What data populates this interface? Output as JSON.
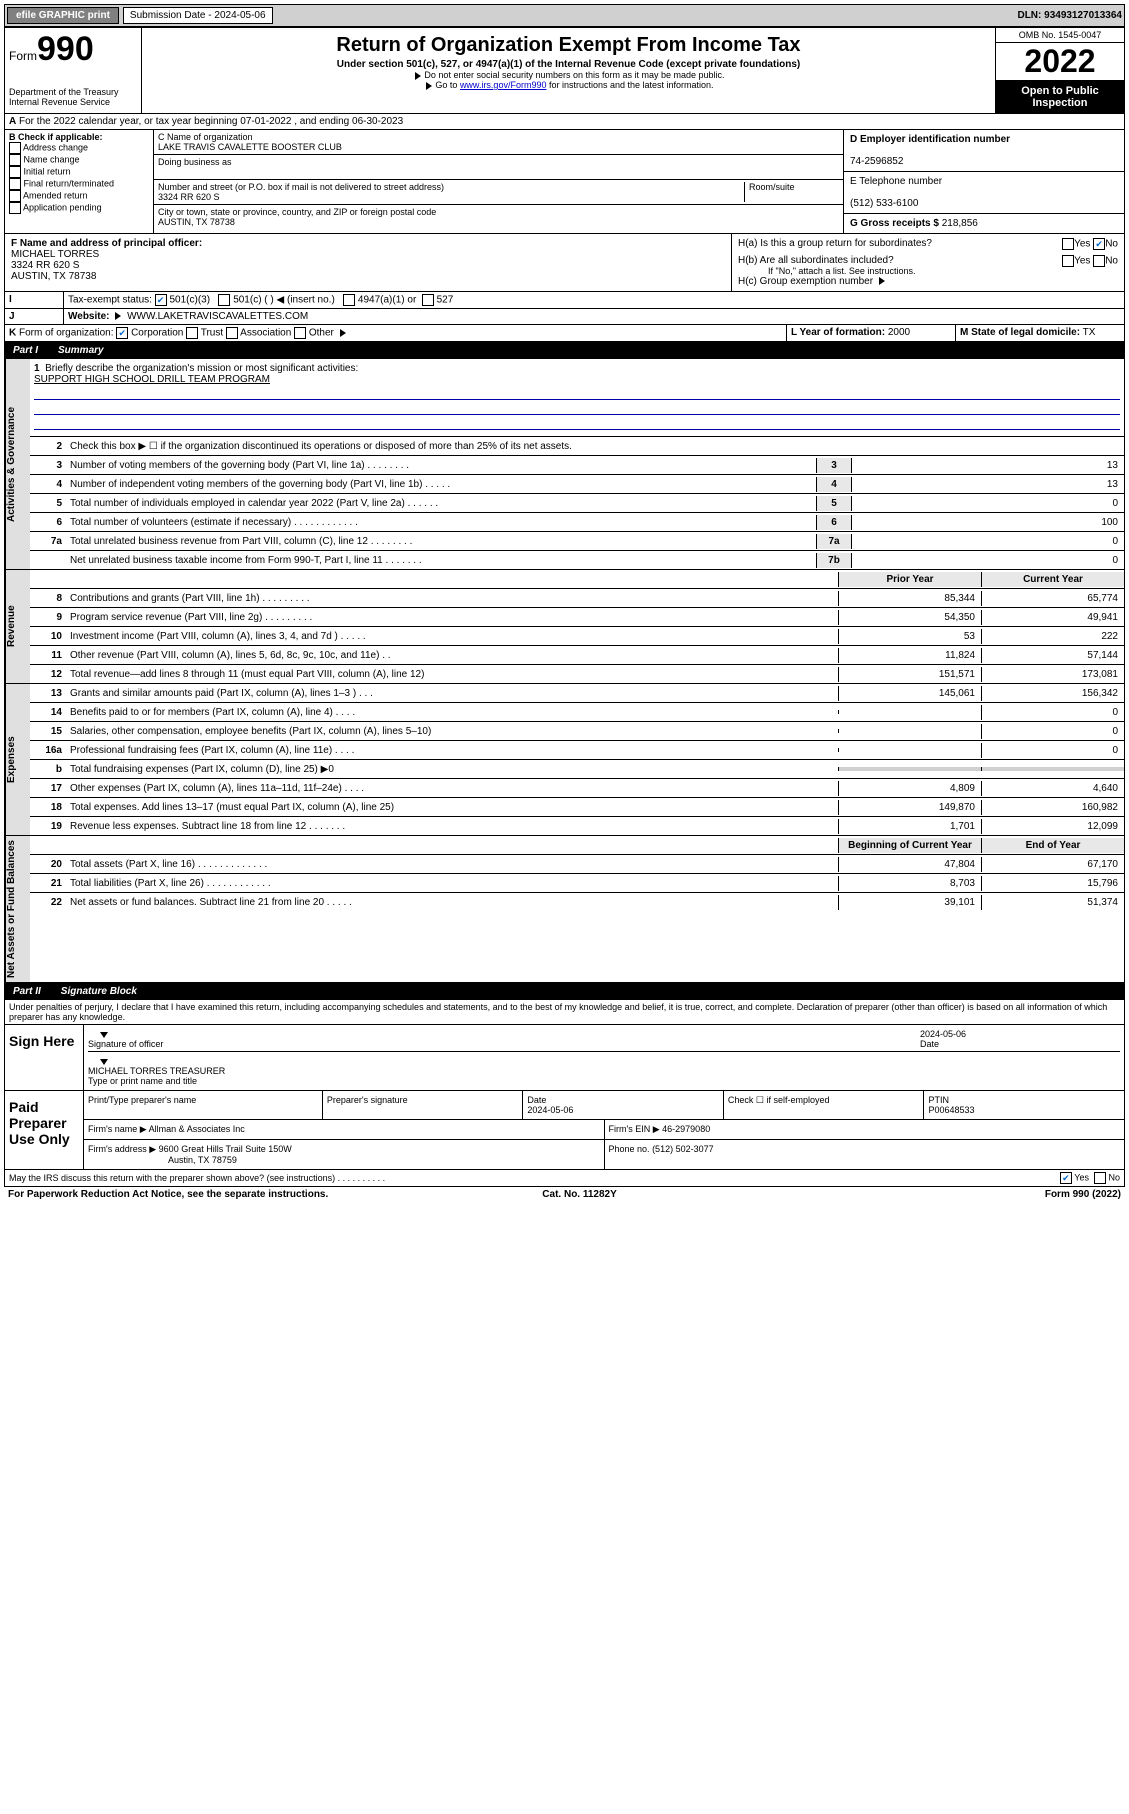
{
  "colors": {
    "header_bg": "#d0d0d0",
    "btn_bg": "#808080",
    "link": "#0000cc",
    "black": "#000000",
    "white": "#ffffff",
    "vtab_bg": "#e0e0e0",
    "box_bg": "#e8e8e8",
    "check": "#0066cc",
    "mission_line": "#0000aa"
  },
  "topbar": {
    "efile": "efile GRAPHIC print",
    "sub_label": "Submission Date - 2024-05-06",
    "dln": "DLN: 93493127013364"
  },
  "header": {
    "form_label": "Form",
    "form_num": "990",
    "title": "Return of Organization Exempt From Income Tax",
    "subtitle": "Under section 501(c), 527, or 4947(a)(1) of the Internal Revenue Code (except private foundations)",
    "note1": "Do not enter social security numbers on this form as it may be made public.",
    "note2_pre": "Go to ",
    "note2_link": "www.irs.gov/Form990",
    "note2_post": " for instructions and the latest information.",
    "dept": "Department of the Treasury",
    "irs": "Internal Revenue Service",
    "omb": "OMB No. 1545-0047",
    "year": "2022",
    "open1": "Open to Public",
    "open2": "Inspection"
  },
  "sectionA": {
    "text": "For the 2022 calendar year, or tax year beginning 07-01-2022    , and ending 06-30-2023",
    "prefix": "A"
  },
  "colB": {
    "label": "B Check if applicable:",
    "opts": [
      "Address change",
      "Name change",
      "Initial return",
      "Final return/terminated",
      "Amended return",
      "Application pending"
    ]
  },
  "colC": {
    "name_label": "C Name of organization",
    "name": "LAKE TRAVIS CAVALETTE BOOSTER CLUB",
    "dba_label": "Doing business as",
    "dba": "",
    "addr_label": "Number and street (or P.O. box if mail is not delivered to street address)",
    "room_label": "Room/suite",
    "addr": "3324 RR 620 S",
    "city_label": "City or town, state or province, country, and ZIP or foreign postal code",
    "city": "AUSTIN, TX  78738"
  },
  "colRight": {
    "ein_label": "D Employer identification number",
    "ein": "74-2596852",
    "tel_label": "E Telephone number",
    "tel": "(512) 533-6100",
    "gross_label": "G Gross receipts $",
    "gross": "218,856"
  },
  "rowF": {
    "f_label": "F  Name and address of principal officer:",
    "f_name": "MICHAEL TORRES",
    "f_addr1": "3324 RR 620 S",
    "f_addr2": "AUSTIN, TX  78738",
    "h_a": "H(a)  Is this a group return for subordinates?",
    "h_b": "H(b)  Are all subordinates included?",
    "h_b_note": "If \"No,\" attach a list. See instructions.",
    "h_c": "H(c)  Group exemption number",
    "yes": "Yes",
    "no": "No"
  },
  "rowI": {
    "label": "Tax-exempt status:",
    "i": "I",
    "o1": "501(c)(3)",
    "o2": "501(c) (  )",
    "o2_note": "(insert no.)",
    "o3": "4947(a)(1) or",
    "o4": "527"
  },
  "rowJ": {
    "j": "J",
    "label": "Website:",
    "val": "WWW.LAKETRAVISCAVALETTES.COM"
  },
  "rowK": {
    "k": "K",
    "label": "Form of organization:",
    "o1": "Corporation",
    "o2": "Trust",
    "o3": "Association",
    "o4": "Other",
    "l_label": "L Year of formation:",
    "l_val": "2000",
    "m_label": "M State of legal domicile:",
    "m_val": "TX"
  },
  "part1": {
    "label": "Part I",
    "title": "Summary"
  },
  "mission": {
    "num": "1",
    "label": "Briefly describe the organization's mission or most significant activities:",
    "text": "SUPPORT HIGH SCHOOL DRILL TEAM PROGRAM"
  },
  "gov_lines": [
    {
      "num": "2",
      "desc": "Check this box ▶ ☐  if the organization discontinued its operations or disposed of more than 25% of its net assets.",
      "box": "",
      "val": ""
    },
    {
      "num": "3",
      "desc": "Number of voting members of the governing body (Part VI, line 1a)   .    .    .    .    .    .    .    .",
      "box": "3",
      "val": "13"
    },
    {
      "num": "4",
      "desc": "Number of independent voting members of the governing body (Part VI, line 1b)  .    .    .    .    .",
      "box": "4",
      "val": "13"
    },
    {
      "num": "5",
      "desc": "Total number of individuals employed in calendar year 2022 (Part V, line 2a)   .    .    .    .    .    .",
      "box": "5",
      "val": "0"
    },
    {
      "num": "6",
      "desc": "Total number of volunteers (estimate if necessary)   .    .    .    .    .    .    .    .    .    .    .    .",
      "box": "6",
      "val": "100"
    },
    {
      "num": "7a",
      "desc": "Total unrelated business revenue from Part VIII, column (C), line 12  .    .    .    .    .    .    .    .",
      "box": "7a",
      "val": "0"
    },
    {
      "num": "",
      "desc": "Net unrelated business taxable income from Form 990-T, Part I, line 11   .    .    .    .    .    .    .",
      "box": "7b",
      "val": "0"
    }
  ],
  "rev_head": {
    "prior": "Prت Year",
    "current": "Current Year"
  },
  "rev_head_labels": {
    "prior": "Prior Year",
    "current": "Current Year"
  },
  "rev_lines": [
    {
      "num": "8",
      "desc": "Contributions and grants (Part VIII, line 1h)   .    .    .    .    .    .    .    .    .",
      "p": "85,344",
      "c": "65,774"
    },
    {
      "num": "9",
      "desc": "Program service revenue (Part VIII, line 2g)   .    .    .    .    .    .    .    .    .",
      "p": "54,350",
      "c": "49,941"
    },
    {
      "num": "10",
      "desc": "Investment income (Part VIII, column (A), lines 3, 4, and 7d )   .    .    .    .    .",
      "p": "53",
      "c": "222"
    },
    {
      "num": "11",
      "desc": "Other revenue (Part VIII, column (A), lines 5, 6d, 8c, 9c, 10c, and 11e)   .    .",
      "p": "11,824",
      "c": "57,144"
    },
    {
      "num": "12",
      "desc": "Total revenue—add lines 8 through 11 (must equal Part VIII, column (A), line 12)",
      "p": "151,571",
      "c": "173,081"
    }
  ],
  "exp_lines": [
    {
      "num": "13",
      "desc": "Grants and similar amounts paid (Part IX, column (A), lines 1–3 )   .    .    .",
      "p": "145,061",
      "c": "156,342"
    },
    {
      "num": "14",
      "desc": "Benefits paid to or for members (Part IX, column (A), line 4)   .    .    .    .",
      "p": "",
      "c": "0"
    },
    {
      "num": "15",
      "desc": "Salaries, other compensation, employee benefits (Part IX, column (A), lines 5–10)",
      "p": "",
      "c": "0"
    },
    {
      "num": "16a",
      "desc": "Professional fundraising fees (Part IX, column (A), line 11e)   .    .    .    .",
      "p": "",
      "c": "0"
    },
    {
      "num": "b",
      "desc": "Total fundraising expenses (Part IX, column (D), line 25) ▶0",
      "p": "grey",
      "c": "grey"
    },
    {
      "num": "17",
      "desc": "Other expenses (Part IX, column (A), lines 11a–11d, 11f–24e)   .    .    .    .",
      "p": "4,809",
      "c": "4,640"
    },
    {
      "num": "18",
      "desc": "Total expenses. Add lines 13–17 (must equal Part IX, column (A), line 25)",
      "p": "149,870",
      "c": "160,982"
    },
    {
      "num": "19",
      "desc": "Revenue less expenses. Subtract line 18 from line 12   .    .    .    .    .    .    .",
      "p": "1,701",
      "c": "12,099"
    }
  ],
  "net_head": {
    "prior": "Beginning of Current Year",
    "current": "End of Year"
  },
  "net_lines": [
    {
      "num": "20",
      "desc": "Total assets (Part X, line 16)   .    .    .    .    .    .    .    .    .    .    .    .    .",
      "p": "47,804",
      "c": "67,170"
    },
    {
      "num": "21",
      "desc": "Total liabilities (Part X, line 26)   .    .    .    .    .    .    .    .    .    .    .    .",
      "p": "8,703",
      "c": "15,796"
    },
    {
      "num": "22",
      "desc": "Net assets or fund balances. Subtract line 21 from line 20   .    .    .    .    .",
      "p": "39,101",
      "c": "51,374"
    }
  ],
  "vtabs": {
    "gov": "Activities & Governance",
    "rev": "Revenue",
    "exp": "Expenses",
    "net": "Net Assets or Fund Balances"
  },
  "part2": {
    "label": "Part II",
    "title": "Signature Block"
  },
  "penalty": "Under penalties of perjury, I declare that I have examined this return, including accompanying schedules and statements, and to the best of my knowledge and belief, it is true, correct, and complete. Declaration of preparer (other than officer) is based on all information of which preparer has any knowledge.",
  "sign": {
    "here": "Sign Here",
    "sig_officer": "Signature of officer",
    "date": "Date",
    "date_val": "2024-05-06",
    "name": "MICHAEL TORRES  TREASURER",
    "name_label": "Type or print name and title"
  },
  "preparer": {
    "label": "Paid Preparer Use Only",
    "print_label": "Print/Type preparer's name",
    "sig_label": "Preparer's signature",
    "date_label": "Date",
    "date_val": "2024-05-06",
    "check_label": "Check ☐ if self-employed",
    "ptin_label": "PTIN",
    "ptin": "P00648533",
    "firm_name_label": "Firm's name   ▶",
    "firm_name": "Allman & Associates Inc",
    "firm_ein_label": "Firm's EIN ▶",
    "firm_ein": "46-2979080",
    "firm_addr_label": "Firm's address ▶",
    "firm_addr1": "9600 Great Hills Trail Suite 150W",
    "firm_addr2": "Austin, TX  78759",
    "phone_label": "Phone no.",
    "phone": "(512) 502-3077"
  },
  "discuss": {
    "text": "May the IRS discuss this return with the preparer shown above? (see instructions)   .    .    .    .    .    .    .    .    .    .",
    "yes": "Yes",
    "no": "No"
  },
  "footer": {
    "left": "For Paperwork Reduction Act Notice, see the separate instructions.",
    "mid": "Cat. No. 11282Y",
    "right": "Form 990 (2022)"
  }
}
